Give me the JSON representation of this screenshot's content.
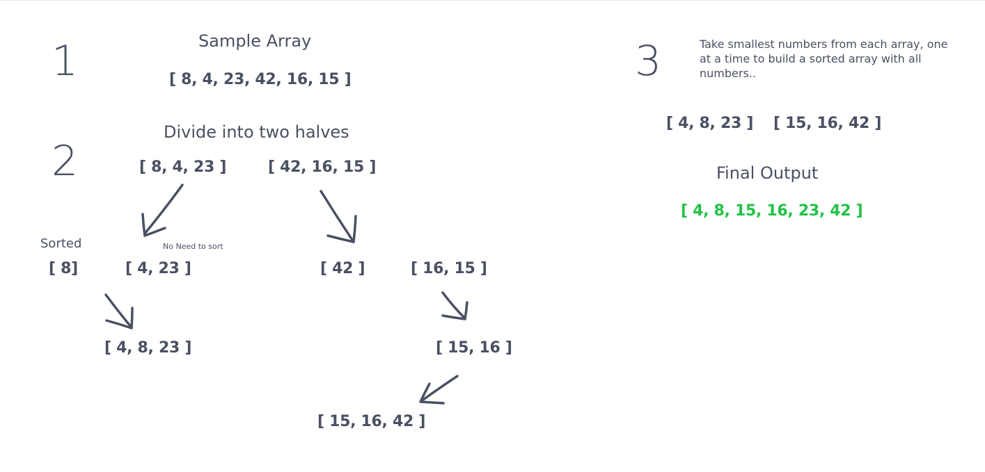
{
  "steps": {
    "one": "1",
    "two": "2",
    "three": "3"
  },
  "sample": {
    "heading": "Sample Array",
    "array": "[ 8, 4, 23, 42, 16, 15 ]"
  },
  "divide": {
    "heading": "Divide into two halves",
    "left_half": "[ 8, 4, 23 ]",
    "right_half": "[ 42, 16, 15 ]"
  },
  "split": {
    "sorted_label": "Sorted",
    "no_need_label": "No Need to sort",
    "eight": "[ 8]",
    "four_23": "[ 4, 23 ]",
    "forty_two": "[ 42 ]",
    "sixteen_15": "[ 16, 15 ]"
  },
  "merge": {
    "left_result": "[ 4, 8, 23 ]",
    "right_pair": "[ 15, 16 ]",
    "right_result": "[ 15, 16, 42 ]"
  },
  "combine": {
    "instruction": "Take smallest numbers from each array, one at a time to build a sorted array with all numbers..",
    "left": "[ 4, 8, 23 ]",
    "right": "[ 15, 16, 42 ]",
    "final_heading": "Final Output",
    "final_array": "[ 4, 8, 15, 16, 23, 42 ]"
  },
  "colors": {
    "ink": "#4a5062",
    "final": "#22c245"
  }
}
